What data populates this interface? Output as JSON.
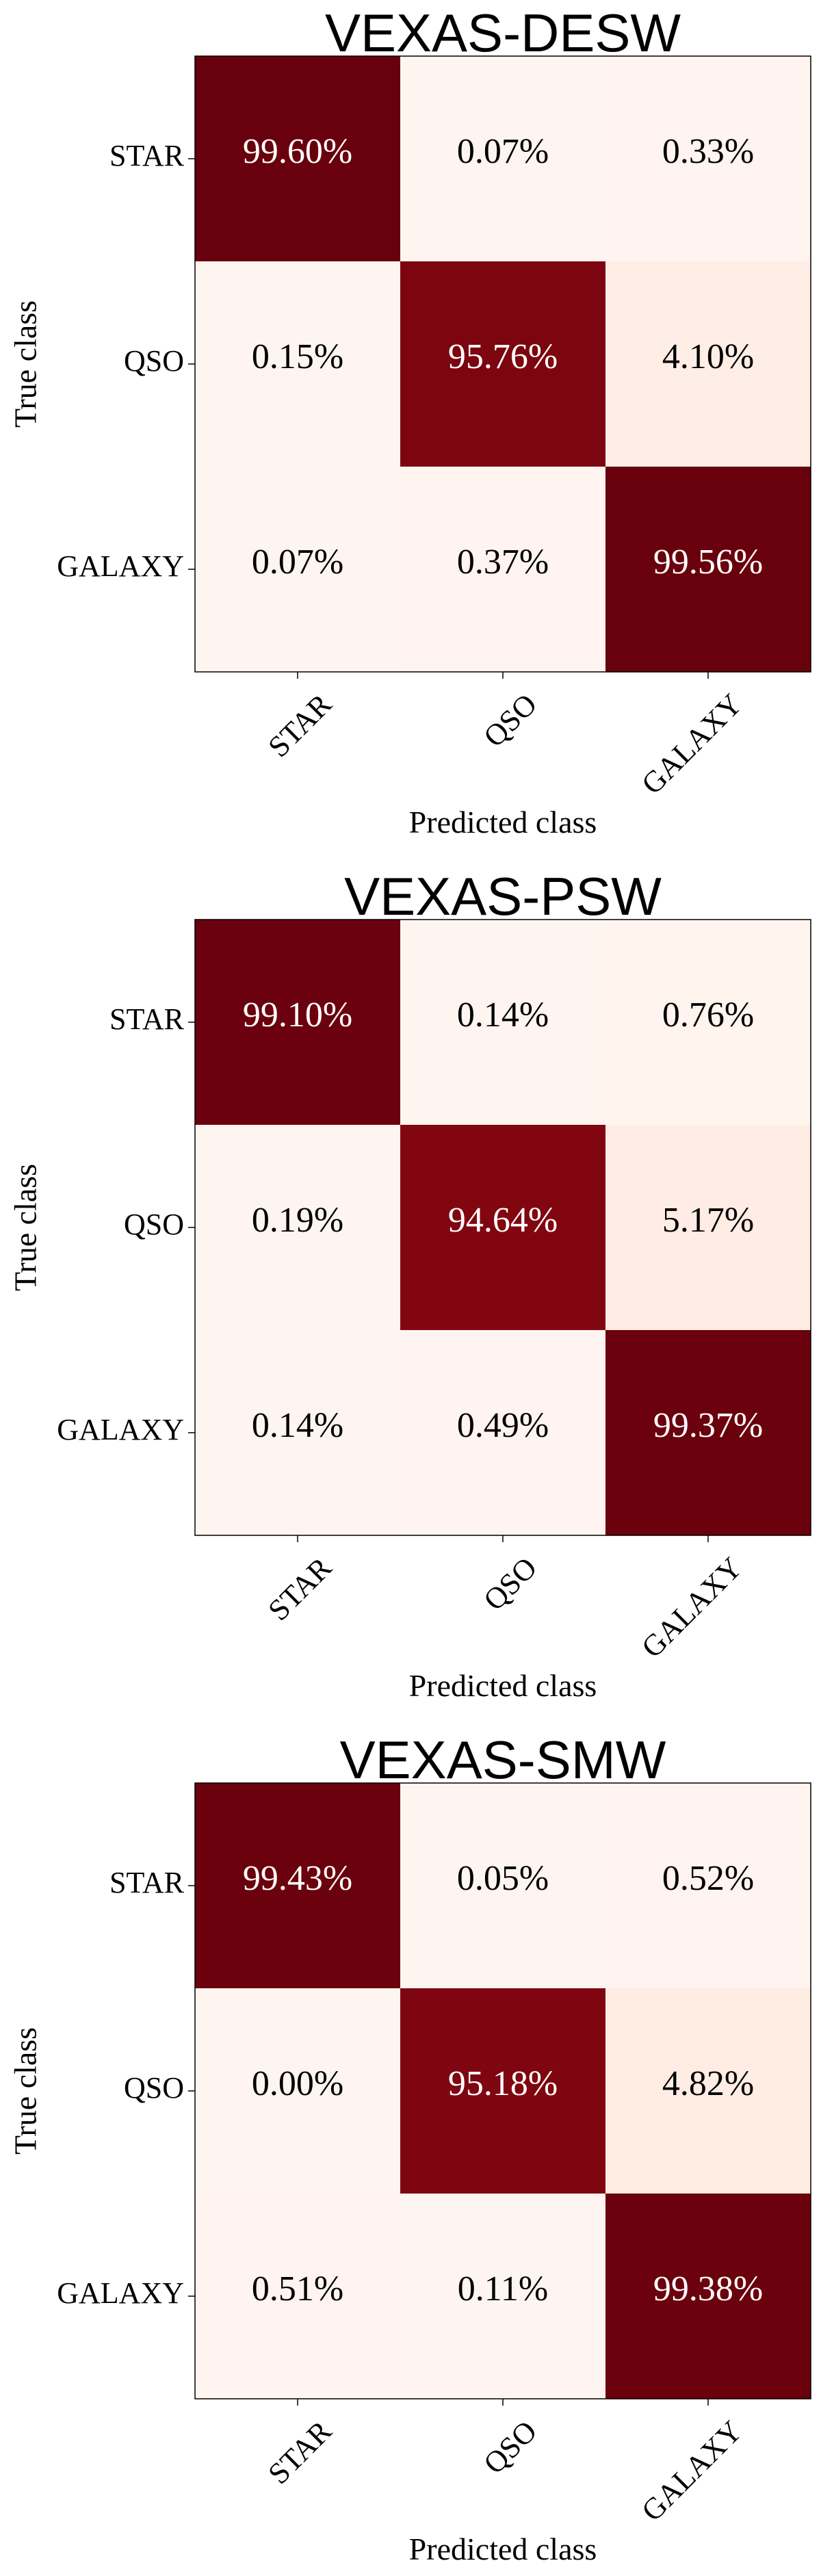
{
  "chart_data": [
    {
      "type": "heatmap",
      "title": "VEXAS-DESW",
      "xlabel": "Predicted class",
      "ylabel": "True class",
      "x_categories": [
        "STAR",
        "QSO",
        "GALAXY"
      ],
      "y_categories": [
        "STAR",
        "QSO",
        "GALAXY"
      ],
      "values": [
        [
          99.6,
          0.07,
          0.33
        ],
        [
          0.15,
          95.76,
          4.1
        ],
        [
          0.07,
          0.37,
          99.56
        ]
      ],
      "labels": [
        [
          "99.60%",
          "0.07%",
          "0.33%"
        ],
        [
          "0.15%",
          "95.76%",
          "4.10%"
        ],
        [
          "0.07%",
          "0.37%",
          "99.56%"
        ]
      ],
      "colormap": "Reds",
      "range": [
        0,
        100
      ],
      "grid": false
    },
    {
      "type": "heatmap",
      "title": "VEXAS-PSW",
      "xlabel": "Predicted class",
      "ylabel": "True class",
      "x_categories": [
        "STAR",
        "QSO",
        "GALAXY"
      ],
      "y_categories": [
        "STAR",
        "QSO",
        "GALAXY"
      ],
      "values": [
        [
          99.1,
          0.14,
          0.76
        ],
        [
          0.19,
          94.64,
          5.17
        ],
        [
          0.14,
          0.49,
          99.37
        ]
      ],
      "labels": [
        [
          "99.10%",
          "0.14%",
          "0.76%"
        ],
        [
          "0.19%",
          "94.64%",
          "5.17%"
        ],
        [
          "0.14%",
          "0.49%",
          "99.37%"
        ]
      ],
      "colormap": "Reds",
      "range": [
        0,
        100
      ],
      "grid": false
    },
    {
      "type": "heatmap",
      "title": "VEXAS-SMW",
      "xlabel": "Predicted class",
      "ylabel": "True class",
      "x_categories": [
        "STAR",
        "QSO",
        "GALAXY"
      ],
      "y_categories": [
        "STAR",
        "QSO",
        "GALAXY"
      ],
      "values": [
        [
          99.43,
          0.05,
          0.52
        ],
        [
          0.0,
          95.18,
          4.82
        ],
        [
          0.51,
          0.11,
          99.38
        ]
      ],
      "labels": [
        [
          "99.43%",
          "0.05%",
          "0.52%"
        ],
        [
          "0.00%",
          "95.18%",
          "4.82%"
        ],
        [
          "0.51%",
          "0.11%",
          "99.38%"
        ]
      ],
      "colormap": "Reds",
      "range": [
        0,
        100
      ],
      "grid": false
    }
  ]
}
